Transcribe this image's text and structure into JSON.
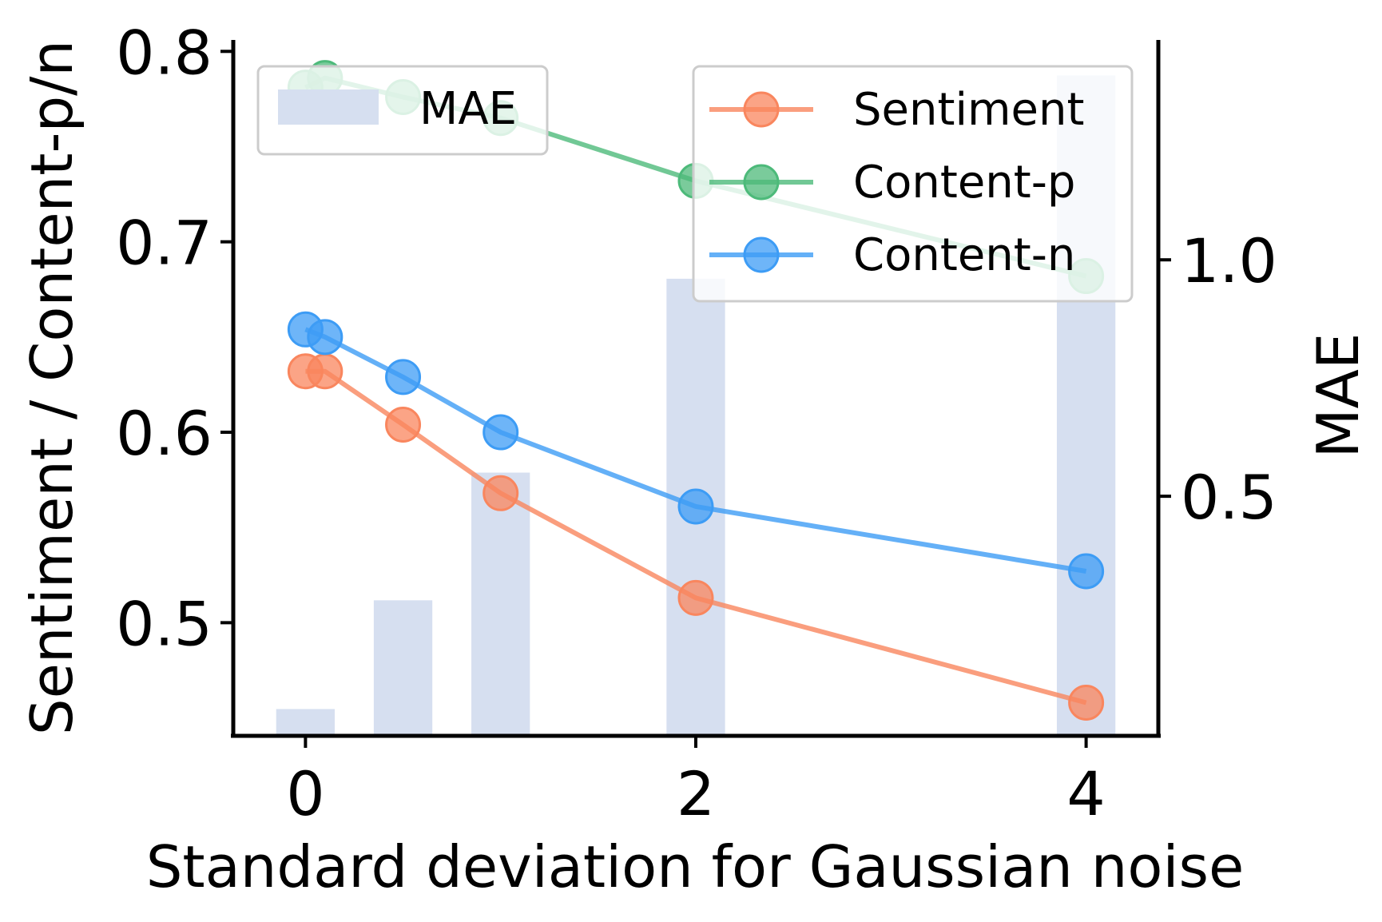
{
  "chart_data": {
    "type": "bar+line",
    "xlabel": "Standard deviation for Gaussian noise",
    "ylabel_left": "Sentiment / Content-p/n",
    "ylabel_right": "MAE",
    "x_ticks": [
      "0",
      "2",
      "4"
    ],
    "y_left_ticks": [
      "0.5",
      "0.6",
      "0.7",
      "0.8"
    ],
    "y_right_ticks": [
      "0.5",
      "1.0"
    ],
    "x_range": [
      -0.37,
      4.37
    ],
    "y_left_range": [
      0.441,
      0.806
    ],
    "y_right_range": [
      -0.005,
      1.465
    ],
    "bars": {
      "name": "MAE",
      "axis": "right",
      "color": "#d6dff0",
      "x": [
        0,
        0.5,
        1,
        2,
        4
      ],
      "values": [
        0.05,
        0.28,
        0.55,
        0.96,
        1.39
      ]
    },
    "series": [
      {
        "name": "Sentiment",
        "color": "#f9865e",
        "x": [
          0,
          0.1,
          0.5,
          1,
          2,
          4
        ],
        "values": [
          0.632,
          0.632,
          0.604,
          0.568,
          0.513,
          0.458
        ]
      },
      {
        "name": "Content-p",
        "color": "#4dba7a",
        "x": [
          0,
          0.1,
          0.5,
          1,
          2,
          4
        ],
        "values": [
          0.781,
          0.786,
          0.776,
          0.765,
          0.732,
          0.682
        ]
      },
      {
        "name": "Content-n",
        "color": "#3d9cf5",
        "x": [
          0,
          0.1,
          0.5,
          1,
          2,
          4
        ],
        "values": [
          0.654,
          0.65,
          0.629,
          0.6,
          0.561,
          0.527
        ]
      }
    ],
    "legend_left_position": "top-left",
    "legend_right_position": "top-right",
    "grid": false
  }
}
